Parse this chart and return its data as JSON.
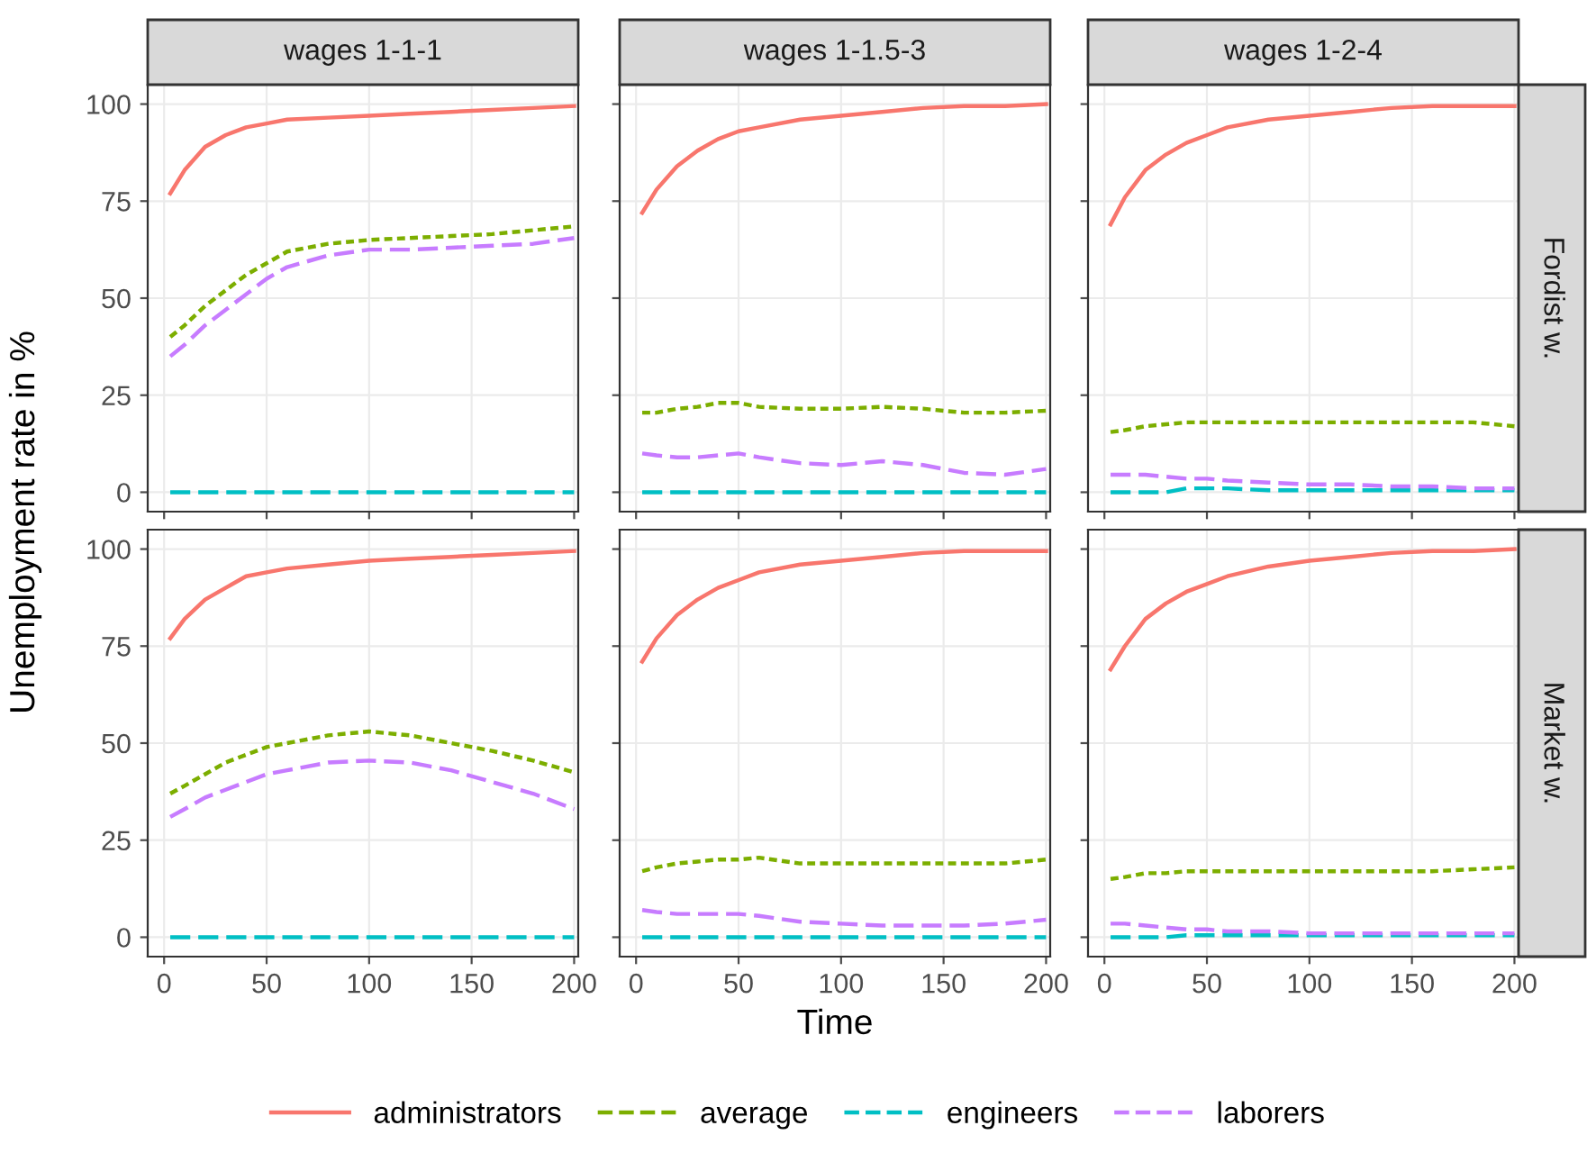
{
  "chart_data": [
    {
      "type": "line",
      "title": "wages 1-1-1",
      "ylabel": "Unemployment rate in %",
      "legend": "bottom",
      "tick_labels": "y",
      "grid": true,
      "xlim": [
        -8,
        202
      ],
      "xticks": [
        0,
        50,
        100,
        150,
        200
      ],
      "ylim": [
        -5,
        105
      ],
      "yticks": [
        0,
        25,
        50,
        75,
        100
      ],
      "x": [
        3,
        10,
        20,
        30,
        40,
        50,
        60,
        80,
        100,
        120,
        140,
        160,
        180,
        200
      ],
      "series": [
        {
          "name": "administrators",
          "color": "#f8766d",
          "line_style": "solid",
          "values": [
            77,
            83,
            89,
            92,
            94,
            95,
            96,
            96.5,
            97,
            97.5,
            98,
            98.5,
            99,
            99.5
          ]
        },
        {
          "name": "average",
          "color": "#7cae00",
          "line_style": "dotted",
          "values": [
            40,
            43,
            48,
            52,
            56,
            59,
            62,
            64,
            65,
            65.5,
            66,
            66.5,
            67.5,
            68.5
          ]
        },
        {
          "name": "engineers",
          "color": "#00bfc4",
          "line_style": "dashed",
          "values": [
            0,
            0,
            0,
            0,
            0,
            0,
            0,
            0,
            0,
            0,
            0,
            0,
            0,
            0
          ]
        },
        {
          "name": "laborers",
          "color": "#c77cff",
          "line_style": "dashed",
          "values": [
            35,
            38,
            43,
            47,
            51,
            55,
            58,
            61,
            62.5,
            62.5,
            63,
            63.5,
            64,
            65.5
          ]
        }
      ]
    },
    {
      "type": "line",
      "title": "wages 1-1.5-3",
      "tick_labels": false,
      "grid": true,
      "xlim": [
        -8,
        202
      ],
      "xticks": [
        0,
        50,
        100,
        150,
        200
      ],
      "ylim": [
        -5,
        105
      ],
      "yticks": [
        0,
        25,
        50,
        75,
        100
      ],
      "x": [
        3,
        10,
        20,
        30,
        40,
        50,
        60,
        80,
        100,
        120,
        140,
        160,
        180,
        200
      ],
      "series": [
        {
          "color": "#f8766d",
          "line_style": "solid",
          "values": [
            72,
            78,
            84,
            88,
            91,
            93,
            94,
            96,
            97,
            98,
            99,
            99.5,
            99.5,
            100
          ]
        },
        {
          "color": "#7cae00",
          "line_style": "dotted",
          "values": [
            20.5,
            20.5,
            21.5,
            22,
            23,
            23,
            22,
            21.5,
            21.5,
            22,
            21.5,
            20.5,
            20.5,
            21
          ]
        },
        {
          "color": "#00bfc4",
          "line_style": "dashed",
          "values": [
            0,
            0,
            0,
            0,
            0,
            0,
            0,
            0,
            0,
            0,
            0,
            0,
            0,
            0
          ]
        },
        {
          "color": "#c77cff",
          "line_style": "dashed",
          "values": [
            10,
            9.5,
            9,
            9,
            9.5,
            10,
            9,
            7.5,
            7,
            8,
            7,
            5,
            4.5,
            6
          ]
        }
      ]
    },
    {
      "type": "line",
      "title": "wages 1-2-4",
      "annotations": [
        "Fordist w."
      ],
      "tick_labels": false,
      "grid": true,
      "xlim": [
        -8,
        202
      ],
      "xticks": [
        0,
        50,
        100,
        150,
        200
      ],
      "ylim": [
        -5,
        105
      ],
      "yticks": [
        0,
        25,
        50,
        75,
        100
      ],
      "x": [
        3,
        10,
        20,
        30,
        40,
        50,
        60,
        80,
        100,
        120,
        140,
        160,
        180,
        200
      ],
      "series": [
        {
          "color": "#f8766d",
          "line_style": "solid",
          "values": [
            69,
            76,
            83,
            87,
            90,
            92,
            94,
            96,
            97,
            98,
            99,
            99.5,
            99.5,
            99.5
          ]
        },
        {
          "color": "#7cae00",
          "line_style": "dotted",
          "values": [
            15.5,
            16,
            17,
            17.5,
            18,
            18,
            18,
            18,
            18,
            18,
            18,
            18,
            18,
            17
          ]
        },
        {
          "color": "#00bfc4",
          "line_style": "dashed",
          "values": [
            0,
            0,
            0,
            0,
            1,
            1,
            1,
            0.5,
            0.5,
            0.5,
            0.5,
            0.5,
            0.5,
            0.5
          ]
        },
        {
          "color": "#c77cff",
          "line_style": "dashed",
          "values": [
            4.5,
            4.5,
            4.5,
            4,
            3.5,
            3.5,
            3,
            2.5,
            2,
            2,
            1.5,
            1.5,
            1,
            1
          ]
        }
      ]
    },
    {
      "type": "line",
      "grid": true,
      "xlim": [
        -8,
        202
      ],
      "xticks": [
        0,
        50,
        100,
        150,
        200
      ],
      "ylim": [
        -5,
        105
      ],
      "yticks": [
        0,
        25,
        50,
        75,
        100
      ],
      "x": [
        3,
        10,
        20,
        30,
        40,
        50,
        60,
        80,
        100,
        120,
        140,
        160,
        180,
        200
      ],
      "series": [
        {
          "color": "#f8766d",
          "line_style": "solid",
          "values": [
            77,
            82,
            87,
            90,
            93,
            94,
            95,
            96,
            97,
            97.5,
            98,
            98.5,
            99,
            99.5
          ]
        },
        {
          "color": "#7cae00",
          "line_style": "dotted",
          "values": [
            37,
            39,
            42,
            45,
            47,
            49,
            50,
            52,
            53,
            52,
            50,
            48,
            45.5,
            42.5
          ]
        },
        {
          "color": "#00bfc4",
          "line_style": "dashed",
          "values": [
            0,
            0,
            0,
            0,
            0,
            0,
            0,
            0,
            0,
            0,
            0,
            0,
            0,
            0
          ]
        },
        {
          "color": "#c77cff",
          "line_style": "dashed",
          "values": [
            31,
            33,
            36,
            38,
            40,
            42,
            43,
            45,
            45.5,
            45,
            43,
            40,
            37,
            33
          ]
        }
      ]
    },
    {
      "type": "line",
      "xlabel": "Time",
      "tick_labels": "x",
      "grid": true,
      "xlim": [
        -8,
        202
      ],
      "xticks": [
        0,
        50,
        100,
        150,
        200
      ],
      "ylim": [
        -5,
        105
      ],
      "yticks": [
        0,
        25,
        50,
        75,
        100
      ],
      "x": [
        3,
        10,
        20,
        30,
        40,
        50,
        60,
        80,
        100,
        120,
        140,
        160,
        180,
        200
      ],
      "series": [
        {
          "color": "#f8766d",
          "line_style": "solid",
          "values": [
            71,
            77,
            83,
            87,
            90,
            92,
            94,
            96,
            97,
            98,
            99,
            99.5,
            99.5,
            99.5
          ]
        },
        {
          "color": "#7cae00",
          "line_style": "dotted",
          "values": [
            17,
            18,
            19,
            19.5,
            20,
            20,
            20.5,
            19,
            19,
            19,
            19,
            19,
            19,
            20
          ]
        },
        {
          "color": "#00bfc4",
          "line_style": "dashed",
          "values": [
            0,
            0,
            0,
            0,
            0,
            0,
            0,
            0,
            0,
            0,
            0,
            0,
            0,
            0
          ]
        },
        {
          "color": "#c77cff",
          "line_style": "dashed",
          "values": [
            7,
            6.5,
            6,
            6,
            6,
            6,
            5.5,
            4,
            3.5,
            3,
            3,
            3,
            3.5,
            4.5
          ]
        }
      ]
    },
    {
      "type": "line",
      "annotations": [
        "Market w."
      ],
      "tick_labels": "x",
      "grid": true,
      "xlim": [
        -8,
        202
      ],
      "xticks": [
        0,
        50,
        100,
        150,
        200
      ],
      "ylim": [
        -5,
        105
      ],
      "yticks": [
        0,
        25,
        50,
        75,
        100
      ],
      "x": [
        3,
        10,
        20,
        30,
        40,
        50,
        60,
        80,
        100,
        120,
        140,
        160,
        180,
        200
      ],
      "series": [
        {
          "color": "#f8766d",
          "line_style": "solid",
          "values": [
            69,
            75,
            82,
            86,
            89,
            91,
            93,
            95.5,
            97,
            98,
            99,
            99.5,
            99.5,
            100
          ]
        },
        {
          "color": "#7cae00",
          "line_style": "dotted",
          "values": [
            15,
            15.5,
            16.5,
            16.5,
            17,
            17,
            17,
            17,
            17,
            17,
            17,
            17,
            17.5,
            18
          ]
        },
        {
          "color": "#00bfc4",
          "line_style": "dashed",
          "values": [
            0,
            0,
            0,
            0,
            0.5,
            0.5,
            0.5,
            0.5,
            0.5,
            0.5,
            0.5,
            0.5,
            0.5,
            0.5
          ]
        },
        {
          "color": "#c77cff",
          "line_style": "dashed",
          "values": [
            3.5,
            3.5,
            3,
            2.5,
            2,
            2,
            1.5,
            1.5,
            1,
            1,
            1,
            1,
            1,
            1
          ]
        }
      ]
    }
  ]
}
